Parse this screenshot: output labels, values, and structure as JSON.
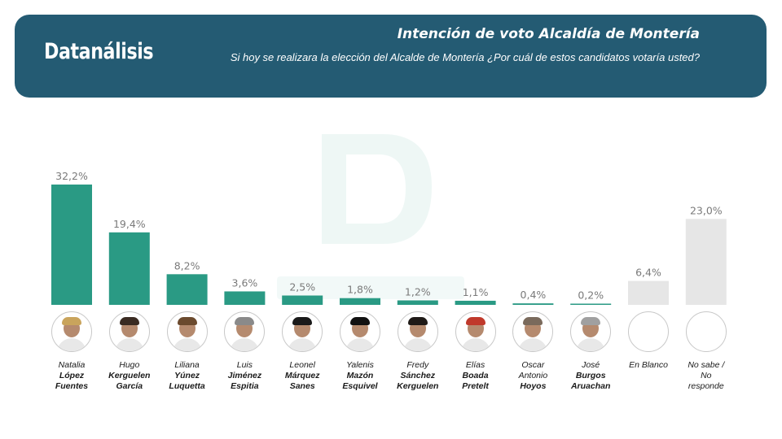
{
  "header": {
    "brand": "Datanálisis",
    "title": "Intención de voto Alcaldía de Montería",
    "subtitle": "Si hoy se realizara la elección del Alcalde de Montería ¿Por cuál de estos candidatos votaría usted?"
  },
  "colors": {
    "header_bg": "#245b73",
    "candidate_bar": "#2a9a84",
    "other_bar": "#e6e6e6",
    "value_label": "#7a7a7a"
  },
  "chart_data": {
    "type": "bar",
    "categories": [
      {
        "first": "Natalia",
        "last": "López Fuentes",
        "lines": [
          "López",
          "Fuentes"
        ],
        "photo": true,
        "group": "candidate",
        "hair": "#c9a45c"
      },
      {
        "first": "Hugo",
        "last": "Kerguelen García",
        "lines": [
          "Kerguelen",
          "García"
        ],
        "photo": true,
        "group": "candidate",
        "hair": "#3a2b22"
      },
      {
        "first": "Liliana",
        "last": "Yúnez Luquetta",
        "lines": [
          "Yúnez",
          "Luquetta"
        ],
        "photo": true,
        "group": "candidate",
        "hair": "#6b4a2e"
      },
      {
        "first": "Luis",
        "last": "Jiménez Espitia",
        "lines": [
          "Jiménez",
          "Espitia"
        ],
        "photo": true,
        "group": "candidate",
        "hair": "#8a8a8a"
      },
      {
        "first": "Leonel",
        "last": "Márquez Sanes",
        "lines": [
          "Márquez",
          "Sanes"
        ],
        "photo": true,
        "group": "candidate",
        "hair": "#1a1a1a"
      },
      {
        "first": "Yalenis",
        "last": "Mazón Esquivel",
        "lines": [
          "Mazón",
          "Esquivel"
        ],
        "photo": true,
        "group": "candidate",
        "hair": "#111111"
      },
      {
        "first": "Fredy",
        "last": "Sánchez Kerguelen",
        "lines": [
          "Sánchez",
          "Kerguelen"
        ],
        "photo": true,
        "group": "candidate",
        "hair": "#1f1a17"
      },
      {
        "first": "Elías",
        "last": "Boada Pretelt",
        "lines": [
          "Boada",
          "Pretelt"
        ],
        "photo": true,
        "group": "candidate",
        "hair": "#c0392b"
      },
      {
        "first": "Oscar Antonio",
        "last": "Hoyos",
        "lines": [
          "Hoyos"
        ],
        "firstLines": [
          "Oscar",
          "Antonio"
        ],
        "photo": true,
        "group": "candidate",
        "hair": "#7a6a5c"
      },
      {
        "first": "José",
        "last": "Burgos Aruachan",
        "lines": [
          "Burgos",
          "Aruachan"
        ],
        "photo": true,
        "group": "candidate",
        "hair": "#a0a0a0"
      },
      {
        "first": "En Blanco",
        "last": "",
        "lines": [],
        "photo": false,
        "group": "other"
      },
      {
        "first": "No sabe / No responde",
        "last": "",
        "lines": [],
        "firstLines": [
          "No sabe /",
          "No",
          "responde"
        ],
        "photo": false,
        "group": "other"
      }
    ],
    "values": [
      32.2,
      19.4,
      8.2,
      3.6,
      2.5,
      1.8,
      1.2,
      1.1,
      0.4,
      0.2,
      6.4,
      23.0
    ],
    "value_labels": [
      "32,2%",
      "19,4%",
      "8,2%",
      "3,6%",
      "2,5%",
      "1,8%",
      "1,2%",
      "1,1%",
      "0,4%",
      "0,2%",
      "6,4%",
      "23,0%"
    ],
    "ylim": [
      0,
      33
    ],
    "grid": false,
    "legend": "none"
  }
}
